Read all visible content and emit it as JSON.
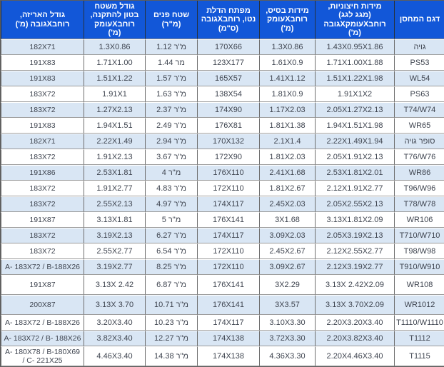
{
  "colors": {
    "header_bg": "#1257d8",
    "header_text": "#ffffff",
    "row_alt_bg": "#d9e6f4",
    "row_bg": "#ffffff",
    "cell_text": "#3f4550",
    "grid_vertical": "#6d6d6d",
    "grid_horizontal": "#9c9c9c"
  },
  "table": {
    "columns": [
      {
        "id": "model",
        "label": "דגם המחסן"
      },
      {
        "id": "external-dimensions",
        "label": "מידות חיצוניות,\n(מגג לגג)\nרוחבXעומקXגובה\n(מ')"
      },
      {
        "id": "base-dimensions",
        "label": "מידות בסיס,\nרוחבXעומק\n(מ')"
      },
      {
        "id": "door-opening",
        "label": "מפתח הדלת\nנטו, רוחבXגובה\n(ס\"מ)"
      },
      {
        "id": "interior-area",
        "label": "שטח פנים\n(מ\"ר)"
      },
      {
        "id": "concrete-pad",
        "label": "גודל משטח\nבטון להתקנה,\nרוחבXעומק\n(מ')"
      },
      {
        "id": "package-size",
        "label": "גודל האריזה,\nרוחבXגובה (מ')"
      }
    ],
    "rows": [
      [
        "גויה",
        "1.43X0.95X1.86",
        "1.3X0.86",
        "170X66",
        "1.12 מ\"ר",
        "1.3X0.86",
        "182X71"
      ],
      [
        "PS53",
        "1.71X1.00X1.88",
        "1.61X0.9",
        "123X177",
        "1.44 מר",
        "1.71X1.00",
        "191X83"
      ],
      [
        "WL54",
        "1.51X1.22X1.98",
        "1.41X1.12",
        "165X57",
        "1.57 מ\"ר",
        "1.51X1.22",
        "191X83"
      ],
      [
        "PS63",
        "1.91X1X2",
        "1.81X0.9",
        "138X54",
        "1.63 מ\"ר",
        "1.91X1",
        "183X72"
      ],
      [
        "T74/W74",
        "2.05X1.27X2.13",
        "1.17X2.03",
        "174X90",
        "2.37 מ\"ר",
        "1.27X2.13",
        "183X72"
      ],
      [
        "WR65",
        "1.94X1.51X1.98",
        "1.81X1.38",
        "176X81",
        "2.49 מ\"ר",
        "1.94X1.51",
        "191X83"
      ],
      [
        "סופר גויה",
        "2.22X1.49X1.94",
        "2.1X1.4",
        "170X132",
        "2.94 מ\"ר",
        "2.22X1.49",
        "182X71"
      ],
      [
        "T76/W76",
        "2.05X1.91X2.13",
        "1.81X2.03",
        "172X90",
        "3.67 מ\"ר",
        "1.91X2.13",
        "183X72"
      ],
      [
        "WR86",
        "2.53X1.81X2.01",
        "2.41X1.68",
        "176X110",
        "4 מ\"ר",
        "2.53X1.81",
        "191X86"
      ],
      [
        "T96/W96",
        "2.12X1.91X2.77",
        "1.81X2.67",
        "172X110",
        "4.83 מ\"ר",
        "1.91X2.77",
        "183X72"
      ],
      [
        "T78/W78",
        "2.05X2.55X2.13",
        "2.45X2.03",
        "174X117",
        "4.97 מ\"ר",
        "2.55X2.13",
        "183X72"
      ],
      [
        "WR106",
        "3.13X1.81X2.09",
        "3X1.68",
        "176X141",
        "5 מ\"ר",
        "3.13X1.81",
        "191X87"
      ],
      [
        "T710/W710",
        "2.05X3.19X2.13",
        "3.09X2.03",
        "174X117",
        "6.27 מ\"ר",
        "3.19X2.13",
        "183X72"
      ],
      [
        "T98/W98",
        "2.12X2.55X2.77",
        "2.45X2.67",
        "172X110",
        "6.54 מ\"ר",
        "2.55X2.77",
        "183X72"
      ],
      [
        "T910/W910",
        "2.12X3.19X2.77",
        "3.09X2.67",
        "172X110",
        "8.25 מ\"ר",
        "3.19X2.77",
        "A- 183X72 / B-188X26"
      ],
      [
        "WR108",
        "3.13X 2.42X2.09",
        "3X2.29",
        "176X141",
        "6.87 מ\"ר",
        "3.13X 2.42",
        "191X87"
      ],
      [
        "WR1012",
        "3.13X 3.70X2.09",
        "3X3.57",
        "176X141",
        "10.71 מ\"ר",
        "3.13X 3.70",
        "200X87"
      ],
      [
        "T1110/W1110",
        "2.20X3.20X3.40",
        "3.10X3.30",
        "174X117",
        "10.23 מ\"ר",
        "3.20X3.40",
        "A- 183X72 / B-188X26"
      ],
      [
        "T1112",
        "2.20X3.82X3.40",
        "3.72X3.30",
        "174X138",
        "12.27 מ\"ר",
        "3.82X3.40",
        "A- 183X72 / B- 188X26"
      ],
      [
        "T1115",
        "2.20X4.46X3.40",
        "4.36X3.30",
        "174X138",
        "14.38 מ\"ר",
        "4.46X3.40",
        "A- 180X78 / B-180X69\n/ C- 221X25"
      ]
    ]
  }
}
